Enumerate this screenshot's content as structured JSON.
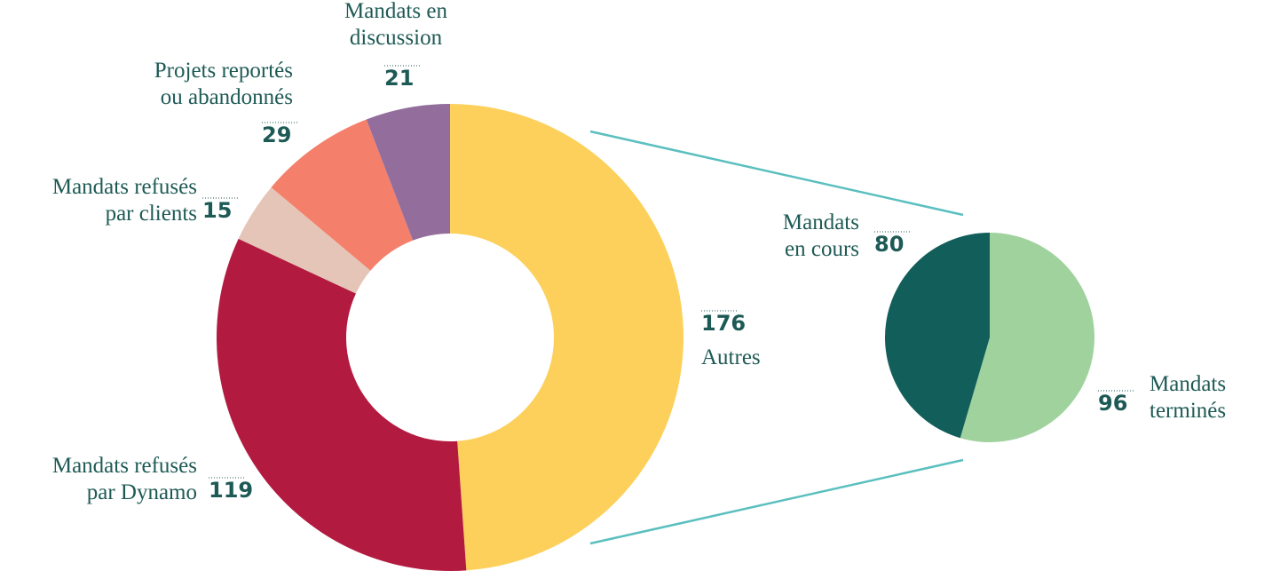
{
  "chart_data": [
    {
      "type": "donut",
      "labels": [
        [
          "Autres"
        ],
        [
          "Mandats refusés",
          "par Dynamo"
        ],
        [
          "Mandats refusés",
          "par clients"
        ],
        [
          "Projets reportés",
          "ou abandonnés"
        ],
        [
          "Mandats en",
          "discussion"
        ]
      ],
      "values": [
        176,
        119,
        15,
        29,
        21
      ],
      "colors": [
        "#fcd05a",
        "#b31a40",
        "#e5c5b7",
        "#f4806b",
        "#936e9c"
      ]
    },
    {
      "type": "pie",
      "labels": [
        [
          "Mandats",
          "terminés"
        ],
        [
          "Mandats",
          "en cours"
        ]
      ],
      "values": [
        96,
        80
      ],
      "colors": [
        "#a0d29e",
        "#125e5a"
      ]
    }
  ]
}
